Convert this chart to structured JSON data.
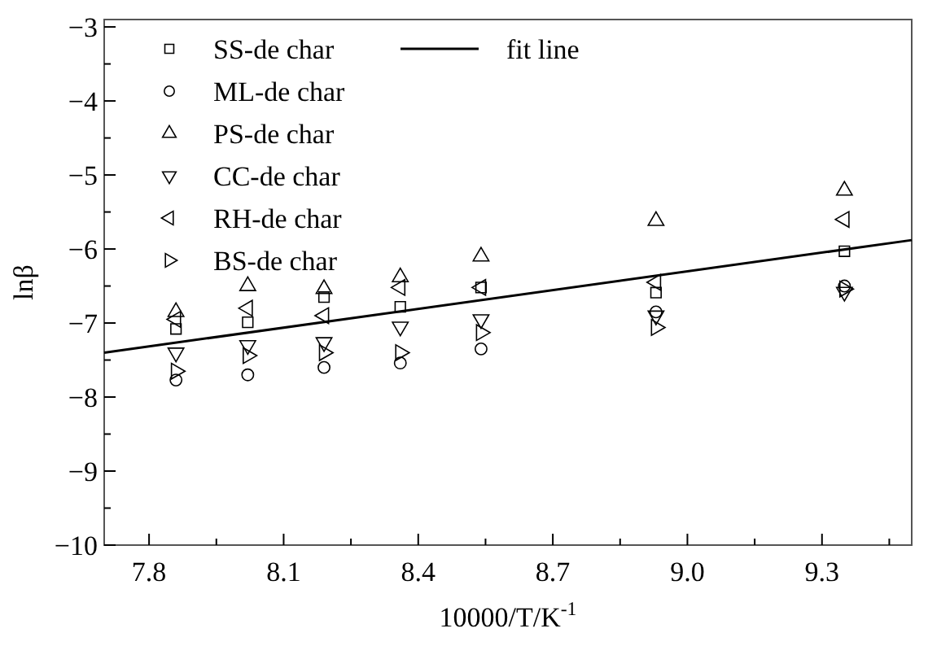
{
  "chart_data": {
    "type": "scatter",
    "xlabel": "10000/T/K$^{-1}$",
    "ylabel": "lnβ",
    "xlim": [
      7.7,
      9.5
    ],
    "ylim": [
      -10,
      -2.9
    ],
    "xticks": [
      7.8,
      {
        "value": 7.95,
        "label": null
      },
      8.1,
      {
        "value": 8.25,
        "label": null
      },
      8.4,
      {
        "value": 8.55,
        "label": null
      },
      8.7,
      {
        "value": 8.85,
        "label": null
      },
      {
        "value": 9.0,
        "label": "9.0"
      },
      {
        "value": 9.15,
        "label": null
      },
      9.3,
      {
        "value": 9.45,
        "label": null
      }
    ],
    "yticks": [
      -10,
      {
        "value": -9.5,
        "label": null
      },
      -9,
      {
        "value": -8.5,
        "label": null
      },
      -8,
      {
        "value": -7.5,
        "label": null
      },
      -7,
      {
        "value": -6.5,
        "label": null
      },
      -6,
      {
        "value": -5.5,
        "label": null
      },
      -5,
      {
        "value": -4.5,
        "label": null
      },
      -4,
      {
        "value": -3.5,
        "label": null
      },
      -3
    ],
    "x": [
      7.86,
      8.02,
      8.19,
      8.36,
      8.54,
      8.93,
      9.35
    ],
    "legend": "top left",
    "grid": false,
    "series": [
      {
        "name": "SS-de char",
        "color": "#000000",
        "marker": "square",
        "values": [
          -7.08,
          -6.99,
          -6.65,
          -6.78,
          -6.52,
          -6.59,
          -6.03
        ]
      },
      {
        "name": "ML-de char",
        "color": "#000000",
        "marker": "circle",
        "values": [
          -7.77,
          -7.7,
          -7.6,
          -7.54,
          -7.35,
          -6.85,
          -6.5
        ]
      },
      {
        "name": "PS-de char",
        "color": "#000000",
        "marker": "triangle",
        "values": [
          -6.85,
          -6.5,
          -6.54,
          -6.38,
          -6.1,
          -5.62,
          -5.21
        ]
      },
      {
        "name": "CC-de char",
        "color": "#000000",
        "marker": "triangle-down",
        "values": [
          -7.4,
          -7.3,
          -7.26,
          -7.05,
          -6.95,
          -6.9,
          -6.58
        ]
      },
      {
        "name": "RH-de char",
        "color": "#000000",
        "marker": "triangle-left",
        "values": [
          -6.95,
          -6.8,
          -6.9,
          -6.52,
          -6.52,
          -6.45,
          -5.6
        ]
      },
      {
        "name": "BS-de char",
        "color": "#000000",
        "marker": "triangle-right",
        "values": [
          -7.65,
          -7.44,
          -7.4,
          -7.4,
          -7.13,
          -7.06,
          -6.54
        ]
      },
      {
        "name": "fit line",
        "type": "line",
        "color": "#000000",
        "line_style": "solid",
        "x": [
          7.7,
          9.5
        ],
        "values": [
          -7.4,
          -5.88
        ]
      }
    ]
  }
}
